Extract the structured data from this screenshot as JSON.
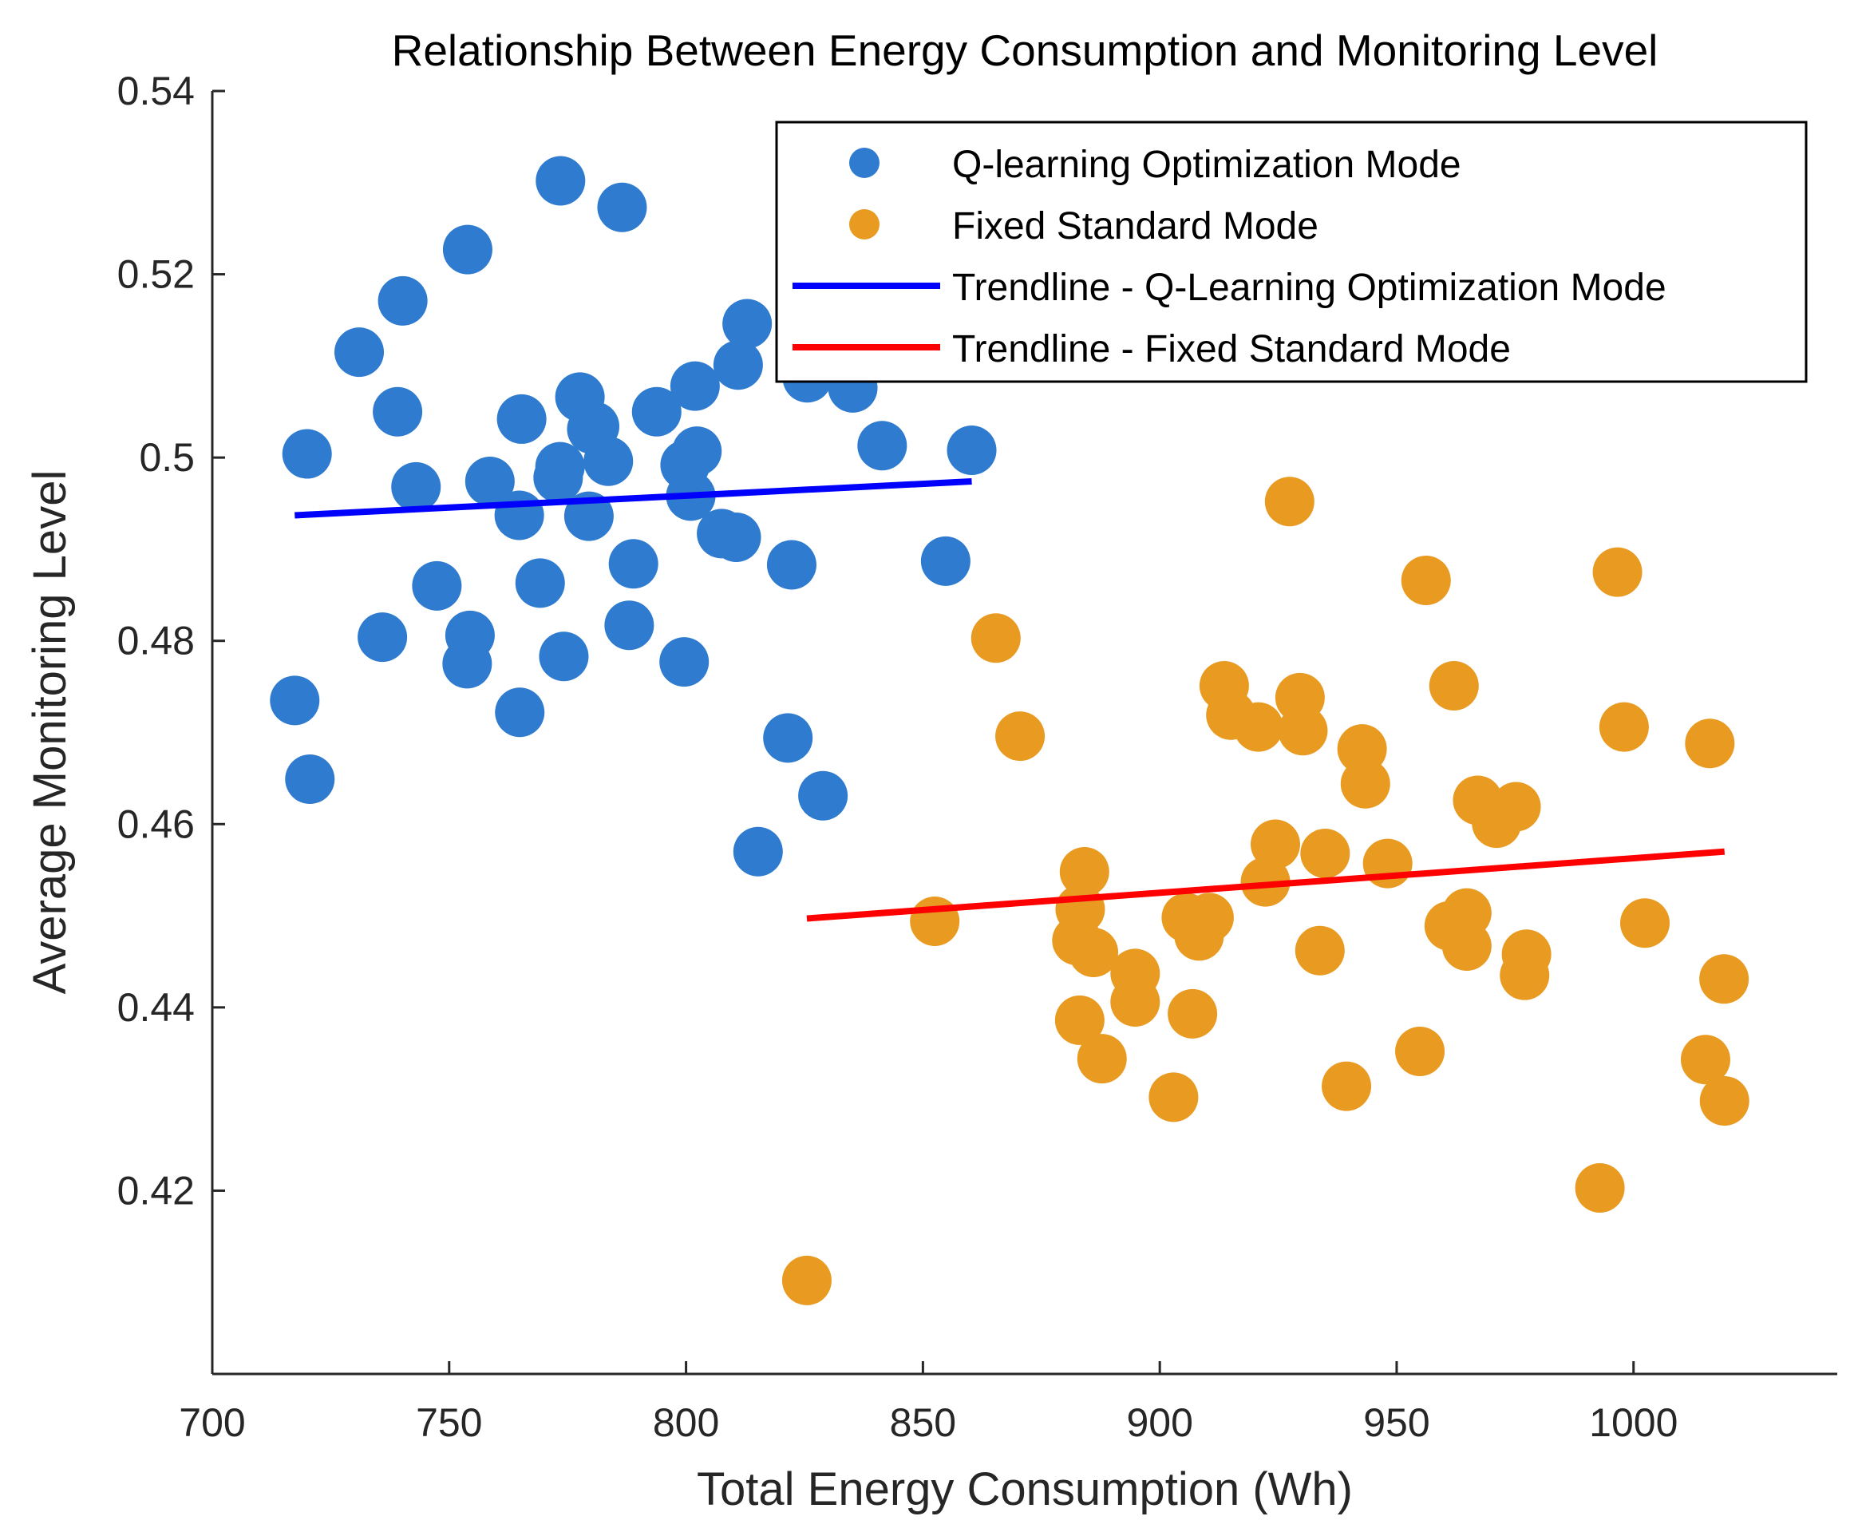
{
  "chart_data": {
    "type": "scatter",
    "title": "Relationship Between Energy Consumption and Monitoring Level",
    "xlabel": "Total Energy Consumption (Wh)",
    "ylabel": "Average Monitoring Level",
    "xlim": [
      700,
      1043
    ],
    "ylim": [
      0.4,
      0.54
    ],
    "xticks": [
      700,
      750,
      800,
      850,
      900,
      950,
      1000
    ],
    "yticks": [
      0.42,
      0.44,
      0.46,
      0.48,
      0.5,
      0.52,
      0.54
    ],
    "ytick_labels": [
      "0.42",
      "0.44",
      "0.46",
      "0.48",
      "0.5",
      "0.52",
      "0.54"
    ],
    "grid": false,
    "legend_position": "top-right",
    "series": [
      {
        "name": "Q-learning Optimization Mode",
        "kind": "points",
        "color": "#2E7BCF",
        "points": [
          [
            773.5,
            0.5302
          ],
          [
            786.5,
            0.5273
          ],
          [
            753.9,
            0.5227
          ],
          [
            740.2,
            0.5171
          ],
          [
            812.9,
            0.5146
          ],
          [
            731.0,
            0.5115
          ],
          [
            811.0,
            0.5101
          ],
          [
            825.6,
            0.5087
          ],
          [
            835.2,
            0.5076
          ],
          [
            801.9,
            0.5078
          ],
          [
            777.6,
            0.5066
          ],
          [
            739.1,
            0.505
          ],
          [
            793.8,
            0.505
          ],
          [
            765.3,
            0.5042
          ],
          [
            780.7,
            0.5034
          ],
          [
            780.1,
            0.5031
          ],
          [
            841.4,
            0.5013
          ],
          [
            860.3,
            0.5008
          ],
          [
            720.0,
            0.5004
          ],
          [
            802.3,
            0.5007
          ],
          [
            799.8,
            0.4992
          ],
          [
            783.6,
            0.4996
          ],
          [
            773.4,
            0.499
          ],
          [
            773.0,
            0.4978
          ],
          [
            758.6,
            0.4974
          ],
          [
            743.0,
            0.4968
          ],
          [
            801.0,
            0.4958
          ],
          [
            764.8,
            0.4937
          ],
          [
            779.5,
            0.4936
          ],
          [
            807.5,
            0.4917
          ],
          [
            810.6,
            0.4913
          ],
          [
            822.3,
            0.4883
          ],
          [
            854.8,
            0.4887
          ],
          [
            788.9,
            0.4884
          ],
          [
            769.2,
            0.4863
          ],
          [
            747.4,
            0.486
          ],
          [
            788.0,
            0.4817
          ],
          [
            735.9,
            0.4804
          ],
          [
            754.4,
            0.4806
          ],
          [
            753.8,
            0.4775
          ],
          [
            774.2,
            0.4783
          ],
          [
            799.6,
            0.4777
          ],
          [
            717.4,
            0.4735
          ],
          [
            764.9,
            0.4722
          ],
          [
            821.5,
            0.4694
          ],
          [
            828.9,
            0.4631
          ],
          [
            720.6,
            0.4649
          ],
          [
            815.2,
            0.457
          ]
        ]
      },
      {
        "name": "Fixed Standard Mode",
        "kind": "points",
        "color": "#E89A21",
        "points": [
          [
            927.4,
            0.4952
          ],
          [
            996.6,
            0.4875
          ],
          [
            956.2,
            0.4866
          ],
          [
            865.4,
            0.4803
          ],
          [
            913.6,
            0.4751
          ],
          [
            962.1,
            0.4751
          ],
          [
            929.6,
            0.4738
          ],
          [
            915.0,
            0.4719
          ],
          [
            920.8,
            0.4706
          ],
          [
            930.2,
            0.4702
          ],
          [
            998.0,
            0.4706
          ],
          [
            870.5,
            0.4696
          ],
          [
            1016.1,
            0.4688
          ],
          [
            942.7,
            0.4682
          ],
          [
            943.4,
            0.4644
          ],
          [
            967.1,
            0.4626
          ],
          [
            975.2,
            0.4619
          ],
          [
            971.1,
            0.4601
          ],
          [
            924.4,
            0.4578
          ],
          [
            934.9,
            0.4568
          ],
          [
            948.1,
            0.4557
          ],
          [
            884.1,
            0.4548
          ],
          [
            922.3,
            0.4537
          ],
          [
            964.8,
            0.4503
          ],
          [
            883.2,
            0.4507
          ],
          [
            905.6,
            0.4498
          ],
          [
            910.4,
            0.4498
          ],
          [
            852.5,
            0.4494
          ],
          [
            1002.4,
            0.4492
          ],
          [
            961.1,
            0.4489
          ],
          [
            908.3,
            0.4478
          ],
          [
            882.5,
            0.4473
          ],
          [
            964.8,
            0.4467
          ],
          [
            886.0,
            0.446
          ],
          [
            933.8,
            0.4462
          ],
          [
            977.4,
            0.4458
          ],
          [
            894.8,
            0.4437
          ],
          [
            977.0,
            0.4435
          ],
          [
            1019.1,
            0.4431
          ],
          [
            894.8,
            0.4406
          ],
          [
            906.9,
            0.4393
          ],
          [
            883.1,
            0.4386
          ],
          [
            954.9,
            0.4352
          ],
          [
            887.8,
            0.4344
          ],
          [
            1015.2,
            0.4343
          ],
          [
            939.4,
            0.4314
          ],
          [
            902.9,
            0.4302
          ],
          [
            1019.2,
            0.4298
          ],
          [
            992.9,
            0.4203
          ],
          [
            825.5,
            0.4102
          ]
        ]
      },
      {
        "name": "Trendline - Q-Learning Optimization Mode",
        "kind": "line",
        "color": "#0000FF",
        "x": [
          717.4,
          860.3
        ],
        "y": [
          0.4937,
          0.4974
        ]
      },
      {
        "name": "Trendline - Fixed Standard Mode",
        "kind": "line",
        "color": "#FF0000",
        "x": [
          825.5,
          1019.2
        ],
        "y": [
          0.4497,
          0.457
        ]
      }
    ]
  }
}
